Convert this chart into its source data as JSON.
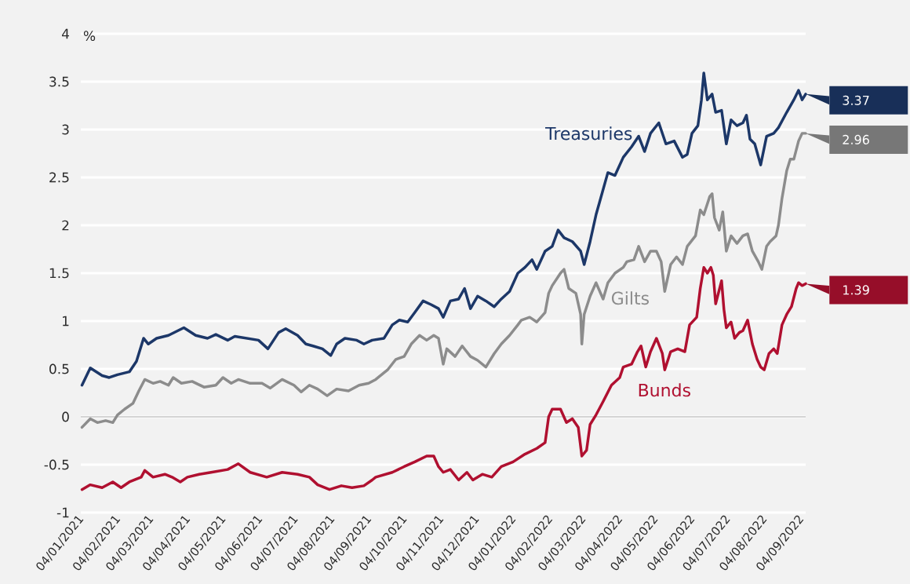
{
  "chart_data": {
    "type": "line",
    "ylabel": "%",
    "xlim": [
      "2021-01-03",
      "2022-09-07"
    ],
    "ylim": [
      -1,
      4
    ],
    "xticks": [
      {
        "value": "2021-01-04",
        "label": "04/01/2021"
      },
      {
        "value": "2021-02-04",
        "label": "04/02/2021"
      },
      {
        "value": "2021-03-04",
        "label": "04/03/2021"
      },
      {
        "value": "2021-04-04",
        "label": "04/04/2021"
      },
      {
        "value": "2021-05-04",
        "label": "04/05/2021"
      },
      {
        "value": "2021-06-04",
        "label": "04/06/2021"
      },
      {
        "value": "2021-07-04",
        "label": "04/07/2021"
      },
      {
        "value": "2021-08-04",
        "label": "04/08/2021"
      },
      {
        "value": "2021-09-04",
        "label": "04/09/2021"
      },
      {
        "value": "2021-10-04",
        "label": "04/10/2021"
      },
      {
        "value": "2021-11-04",
        "label": "04/11/2021"
      },
      {
        "value": "2021-12-04",
        "label": "04/12/2021"
      },
      {
        "value": "2022-01-04",
        "label": "04/01/2022"
      },
      {
        "value": "2022-02-04",
        "label": "04/02/2022"
      },
      {
        "value": "2022-03-04",
        "label": "04/03/2022"
      },
      {
        "value": "2022-04-04",
        "label": "04/04/2022"
      },
      {
        "value": "2022-05-04",
        "label": "04/05/2022"
      },
      {
        "value": "2022-06-04",
        "label": "04/06/2022"
      },
      {
        "value": "2022-07-04",
        "label": "04/07/2022"
      },
      {
        "value": "2022-08-04",
        "label": "04/08/2022"
      },
      {
        "value": "2022-09-04",
        "label": "04/09/2022"
      }
    ],
    "yticks": [
      -1,
      -0.5,
      0,
      0.5,
      1,
      1.5,
      2,
      2.5,
      3,
      3.5,
      4
    ],
    "grid": "y",
    "marker": "none",
    "line_style": "solid",
    "annotations": [
      {
        "text": "3.37",
        "x": "2022-09-07",
        "y": 3.37
      },
      {
        "text": "2.96",
        "x": "2022-09-07",
        "y": 2.96
      },
      {
        "text": "1.39",
        "x": "2022-09-07",
        "y": 1.39
      }
    ],
    "series": [
      {
        "name": "Treasuries",
        "color": "#1c3768",
        "x": [
          "2021-01-04",
          "2021-01-11",
          "2021-01-21",
          "2021-01-27",
          "2021-02-03",
          "2021-02-13",
          "2021-02-19",
          "2021-02-25",
          "2021-03-01",
          "2021-03-08",
          "2021-03-18",
          "2021-03-31",
          "2021-04-10",
          "2021-04-20",
          "2021-04-27",
          "2021-05-07",
          "2021-05-13",
          "2021-05-23",
          "2021-06-02",
          "2021-06-10",
          "2021-06-19",
          "2021-06-25",
          "2021-07-05",
          "2021-07-12",
          "2021-07-18",
          "2021-07-26",
          "2021-08-02",
          "2021-08-07",
          "2021-08-14",
          "2021-08-24",
          "2021-08-30",
          "2021-09-06",
          "2021-09-16",
          "2021-09-23",
          "2021-09-29",
          "2021-10-06",
          "2021-10-12",
          "2021-10-19",
          "2021-10-26",
          "2021-11-01",
          "2021-11-05",
          "2021-11-11",
          "2021-11-18",
          "2021-11-23",
          "2021-11-28",
          "2021-12-04",
          "2021-12-11",
          "2021-12-18",
          "2021-12-24",
          "2021-12-31",
          "2022-01-07",
          "2022-01-13",
          "2022-01-19",
          "2022-01-23",
          "2022-01-30",
          "2022-02-05",
          "2022-02-10",
          "2022-02-15",
          "2022-02-22",
          "2022-03-01",
          "2022-03-04",
          "2022-03-09",
          "2022-03-14",
          "2022-03-19",
          "2022-03-24",
          "2022-03-30",
          "2022-04-06",
          "2022-04-13",
          "2022-04-19",
          "2022-04-24",
          "2022-04-29",
          "2022-05-06",
          "2022-05-12",
          "2022-05-19",
          "2022-05-26",
          "2022-05-30",
          "2022-06-03",
          "2022-06-08",
          "2022-06-11",
          "2022-06-13",
          "2022-06-16",
          "2022-06-20",
          "2022-06-23",
          "2022-06-28",
          "2022-07-02",
          "2022-07-06",
          "2022-07-11",
          "2022-07-16",
          "2022-07-19",
          "2022-07-22",
          "2022-07-26",
          "2022-07-31",
          "2022-08-05",
          "2022-08-11",
          "2022-08-15",
          "2022-08-22",
          "2022-08-28",
          "2022-09-01",
          "2022-09-04",
          "2022-09-07"
        ],
        "values": [
          0.33,
          0.51,
          0.43,
          0.41,
          0.44,
          0.47,
          0.58,
          0.82,
          0.76,
          0.82,
          0.85,
          0.93,
          0.85,
          0.82,
          0.86,
          0.8,
          0.84,
          0.82,
          0.8,
          0.71,
          0.88,
          0.92,
          0.85,
          0.76,
          0.74,
          0.71,
          0.64,
          0.76,
          0.82,
          0.8,
          0.76,
          0.8,
          0.82,
          0.96,
          1.01,
          0.99,
          1.09,
          1.21,
          1.17,
          1.13,
          1.04,
          1.21,
          1.23,
          1.34,
          1.13,
          1.26,
          1.21,
          1.15,
          1.23,
          1.31,
          1.5,
          1.56,
          1.64,
          1.54,
          1.73,
          1.78,
          1.95,
          1.87,
          1.83,
          1.73,
          1.59,
          1.83,
          2.11,
          2.33,
          2.55,
          2.52,
          2.71,
          2.82,
          2.93,
          2.77,
          2.96,
          3.07,
          2.85,
          2.88,
          2.71,
          2.74,
          2.96,
          3.04,
          3.31,
          3.59,
          3.31,
          3.37,
          3.18,
          3.2,
          2.85,
          3.1,
          3.04,
          3.07,
          3.15,
          2.9,
          2.85,
          2.63,
          2.93,
          2.96,
          3.02,
          3.18,
          3.31,
          3.41,
          3.31,
          3.37
        ]
      },
      {
        "name": "Gilts",
        "color": "#8c8c8c",
        "x": [
          "2021-01-04",
          "2021-01-11",
          "2021-01-17",
          "2021-01-24",
          "2021-01-30",
          "2021-02-03",
          "2021-02-09",
          "2021-02-16",
          "2021-02-21",
          "2021-02-26",
          "2021-03-05",
          "2021-03-11",
          "2021-03-18",
          "2021-03-22",
          "2021-03-29",
          "2021-04-07",
          "2021-04-17",
          "2021-04-27",
          "2021-05-03",
          "2021-05-10",
          "2021-05-16",
          "2021-05-26",
          "2021-06-05",
          "2021-06-12",
          "2021-06-22",
          "2021-07-02",
          "2021-07-08",
          "2021-07-15",
          "2021-07-22",
          "2021-07-30",
          "2021-08-07",
          "2021-08-17",
          "2021-08-26",
          "2021-09-03",
          "2021-09-09",
          "2021-09-19",
          "2021-09-26",
          "2021-10-03",
          "2021-10-09",
          "2021-10-16",
          "2021-10-22",
          "2021-10-28",
          "2021-11-01",
          "2021-11-05",
          "2021-11-08",
          "2021-11-15",
          "2021-11-21",
          "2021-11-28",
          "2021-12-04",
          "2021-12-11",
          "2021-12-18",
          "2021-12-24",
          "2021-12-31",
          "2022-01-07",
          "2022-01-10",
          "2022-01-17",
          "2022-01-23",
          "2022-01-30",
          "2022-02-02",
          "2022-02-05",
          "2022-02-12",
          "2022-02-15",
          "2022-02-19",
          "2022-02-25",
          "2022-03-01",
          "2022-03-02",
          "2022-03-04",
          "2022-03-09",
          "2022-03-14",
          "2022-03-20",
          "2022-03-24",
          "2022-03-30",
          "2022-04-06",
          "2022-04-09",
          "2022-04-15",
          "2022-04-19",
          "2022-04-24",
          "2022-04-29",
          "2022-05-04",
          "2022-05-08",
          "2022-05-11",
          "2022-05-16",
          "2022-05-21",
          "2022-05-26",
          "2022-05-30",
          "2022-06-06",
          "2022-06-10",
          "2022-06-13",
          "2022-06-18",
          "2022-06-20",
          "2022-06-22",
          "2022-06-26",
          "2022-06-29",
          "2022-07-02",
          "2022-07-06",
          "2022-07-11",
          "2022-07-16",
          "2022-07-20",
          "2022-07-24",
          "2022-07-29",
          "2022-08-01",
          "2022-08-05",
          "2022-08-08",
          "2022-08-13",
          "2022-08-15",
          "2022-08-18",
          "2022-08-22",
          "2022-08-25",
          "2022-08-28",
          "2022-09-01",
          "2022-09-04",
          "2022-09-07"
        ],
        "values": [
          -0.11,
          -0.02,
          -0.06,
          -0.04,
          -0.06,
          0.02,
          0.08,
          0.14,
          0.27,
          0.39,
          0.35,
          0.37,
          0.33,
          0.41,
          0.35,
          0.37,
          0.31,
          0.33,
          0.41,
          0.35,
          0.39,
          0.35,
          0.35,
          0.3,
          0.39,
          0.33,
          0.26,
          0.33,
          0.29,
          0.22,
          0.29,
          0.27,
          0.33,
          0.35,
          0.39,
          0.49,
          0.6,
          0.63,
          0.76,
          0.85,
          0.8,
          0.85,
          0.82,
          0.55,
          0.71,
          0.63,
          0.74,
          0.63,
          0.59,
          0.52,
          0.66,
          0.76,
          0.85,
          0.96,
          1.01,
          1.04,
          0.99,
          1.09,
          1.29,
          1.37,
          1.5,
          1.54,
          1.34,
          1.29,
          1.07,
          0.76,
          1.07,
          1.26,
          1.4,
          1.23,
          1.4,
          1.5,
          1.56,
          1.62,
          1.64,
          1.78,
          1.62,
          1.73,
          1.73,
          1.62,
          1.31,
          1.59,
          1.67,
          1.59,
          1.78,
          1.89,
          2.16,
          2.11,
          2.3,
          2.33,
          2.08,
          1.95,
          2.14,
          1.73,
          1.89,
          1.81,
          1.89,
          1.91,
          1.73,
          1.62,
          1.54,
          1.78,
          1.83,
          1.89,
          2.0,
          2.28,
          2.57,
          2.69,
          2.69,
          2.88,
          2.96,
          2.96
        ]
      },
      {
        "name": "Bunds",
        "color": "#b01030",
        "x": [
          "2021-01-04",
          "2021-01-11",
          "2021-01-21",
          "2021-01-30",
          "2021-02-06",
          "2021-02-13",
          "2021-02-23",
          "2021-02-26",
          "2021-03-05",
          "2021-03-15",
          "2021-03-21",
          "2021-03-28",
          "2021-04-03",
          "2021-04-13",
          "2021-04-23",
          "2021-05-07",
          "2021-05-16",
          "2021-05-26",
          "2021-06-09",
          "2021-06-22",
          "2021-07-05",
          "2021-07-15",
          "2021-07-22",
          "2021-08-01",
          "2021-08-11",
          "2021-08-20",
          "2021-08-30",
          "2021-09-06",
          "2021-09-09",
          "2021-09-23",
          "2021-10-03",
          "2021-10-12",
          "2021-10-22",
          "2021-10-28",
          "2021-11-01",
          "2021-11-05",
          "2021-11-11",
          "2021-11-18",
          "2021-11-25",
          "2021-11-30",
          "2021-12-08",
          "2021-12-16",
          "2021-12-24",
          "2022-01-03",
          "2022-01-13",
          "2022-01-23",
          "2022-01-30",
          "2022-02-02",
          "2022-02-05",
          "2022-02-12",
          "2022-02-17",
          "2022-02-22",
          "2022-02-27",
          "2022-03-02",
          "2022-03-06",
          "2022-03-09",
          "2022-03-14",
          "2022-03-20",
          "2022-03-27",
          "2022-04-03",
          "2022-04-06",
          "2022-04-13",
          "2022-04-18",
          "2022-04-21",
          "2022-04-25",
          "2022-04-29",
          "2022-05-04",
          "2022-05-09",
          "2022-05-11",
          "2022-05-16",
          "2022-05-22",
          "2022-05-28",
          "2022-06-01",
          "2022-06-07",
          "2022-06-10",
          "2022-06-13",
          "2022-06-16",
          "2022-06-19",
          "2022-06-21",
          "2022-06-23",
          "2022-06-28",
          "2022-06-30",
          "2022-07-02",
          "2022-07-06",
          "2022-07-09",
          "2022-07-13",
          "2022-07-16",
          "2022-07-20",
          "2022-07-24",
          "2022-07-28",
          "2022-07-31",
          "2022-08-03",
          "2022-08-07",
          "2022-08-11",
          "2022-08-14",
          "2022-08-18",
          "2022-08-22",
          "2022-08-26",
          "2022-08-30",
          "2022-09-01",
          "2022-09-04",
          "2022-09-07"
        ],
        "values": [
          -0.76,
          -0.71,
          -0.74,
          -0.68,
          -0.74,
          -0.68,
          -0.63,
          -0.56,
          -0.63,
          -0.6,
          -0.63,
          -0.68,
          -0.63,
          -0.6,
          -0.58,
          -0.55,
          -0.49,
          -0.58,
          -0.63,
          -0.58,
          -0.6,
          -0.63,
          -0.71,
          -0.76,
          -0.72,
          -0.74,
          -0.72,
          -0.66,
          -0.63,
          -0.58,
          -0.52,
          -0.47,
          -0.41,
          -0.41,
          -0.52,
          -0.58,
          -0.55,
          -0.66,
          -0.58,
          -0.66,
          -0.6,
          -0.63,
          -0.52,
          -0.47,
          -0.39,
          -0.33,
          -0.27,
          0.0,
          0.08,
          0.08,
          -0.06,
          -0.02,
          -0.11,
          -0.41,
          -0.35,
          -0.08,
          0.02,
          0.16,
          0.33,
          0.41,
          0.52,
          0.55,
          0.68,
          0.74,
          0.52,
          0.68,
          0.82,
          0.66,
          0.49,
          0.68,
          0.71,
          0.68,
          0.96,
          1.04,
          1.34,
          1.56,
          1.5,
          1.56,
          1.48,
          1.18,
          1.42,
          1.12,
          0.93,
          0.99,
          0.82,
          0.88,
          0.9,
          1.01,
          0.76,
          0.6,
          0.52,
          0.49,
          0.66,
          0.71,
          0.66,
          0.96,
          1.07,
          1.15,
          1.34,
          1.4,
          1.37,
          1.39
        ]
      }
    ]
  }
}
